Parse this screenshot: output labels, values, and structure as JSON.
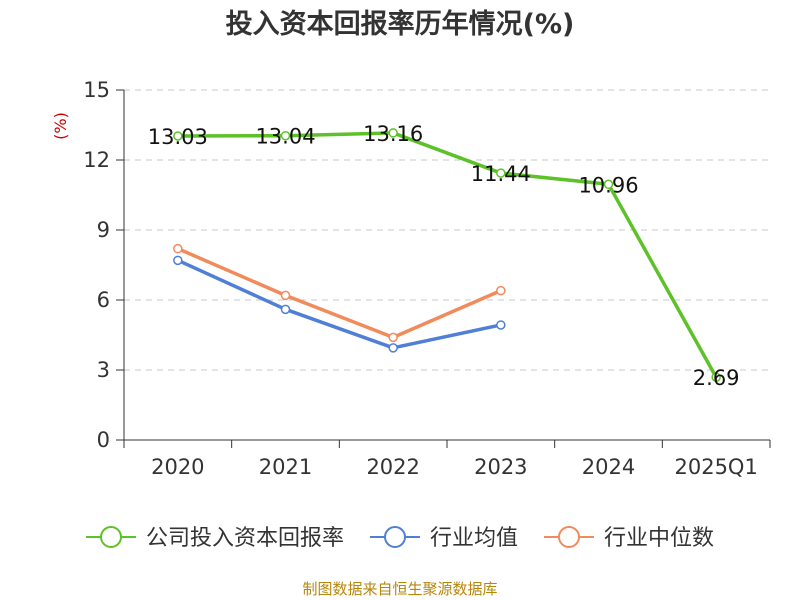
{
  "chart_data": {
    "type": "line",
    "title": "投入资本回报率历年情况(%)",
    "ylabel": "(%)",
    "xlabel": "",
    "categories": [
      "2020",
      "2021",
      "2022",
      "2023",
      "2024",
      "2025Q1"
    ],
    "ylim": [
      0,
      15
    ],
    "yticks": [
      0,
      3,
      6,
      9,
      12,
      15
    ],
    "grid": true,
    "legend_position": "bottom",
    "series": [
      {
        "name": "公司投入资本回报率",
        "color": "#5dc227",
        "values": [
          13.03,
          13.04,
          13.16,
          11.44,
          10.96,
          2.69
        ],
        "data_labels": [
          "13.03",
          "13.04",
          "13.16",
          "11.44",
          "10.96",
          "2.69"
        ]
      },
      {
        "name": "行业均值",
        "color": "#4f7fd6",
        "values": [
          7.7,
          5.6,
          3.95,
          4.93,
          null,
          null
        ]
      },
      {
        "name": "行业中位数",
        "color": "#f28b5b",
        "values": [
          8.2,
          6.2,
          4.4,
          6.4,
          null,
          null
        ]
      }
    ]
  },
  "source_text": "制图数据来自恒生聚源数据库"
}
